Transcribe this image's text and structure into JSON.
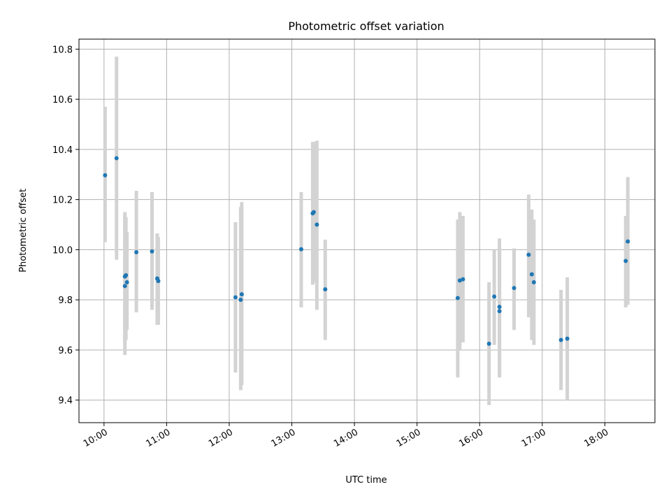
{
  "chart_data": {
    "type": "scatter",
    "title": "Photometric offset variation",
    "xlabel": "UTC time",
    "ylabel": "Photometric offset",
    "xlim": [
      "09:36",
      "18:48"
    ],
    "ylim": [
      9.31,
      10.84
    ],
    "x_ticks": [
      "10:00",
      "11:00",
      "12:00",
      "13:00",
      "14:00",
      "15:00",
      "16:00",
      "17:00",
      "18:00"
    ],
    "y_ticks": [
      "9.4",
      "9.6",
      "9.8",
      "10.0",
      "10.2",
      "10.4",
      "10.6",
      "10.8"
    ],
    "grid": true,
    "colors": {
      "marker": "#1f77b4",
      "errorbar": "#d3d3d3",
      "grid": "#b0b0b0"
    },
    "points": [
      {
        "x": "10:01",
        "y": 10.297,
        "lo": 10.03,
        "hi": 10.57
      },
      {
        "x": "10:12",
        "y": 10.365,
        "lo": 9.96,
        "hi": 10.77
      },
      {
        "x": "10:20",
        "y": 9.893,
        "lo": 9.63,
        "hi": 10.15
      },
      {
        "x": "10:20",
        "y": 9.855,
        "lo": 9.58,
        "hi": 10.12
      },
      {
        "x": "10:21",
        "y": 9.898,
        "lo": 9.64,
        "hi": 10.13
      },
      {
        "x": "10:22",
        "y": 9.87,
        "lo": 9.68,
        "hi": 10.07
      },
      {
        "x": "10:31",
        "y": 9.99,
        "lo": 9.75,
        "hi": 10.235
      },
      {
        "x": "10:46",
        "y": 9.993,
        "lo": 9.76,
        "hi": 10.23
      },
      {
        "x": "10:51",
        "y": 9.885,
        "lo": 9.7,
        "hi": 10.065
      },
      {
        "x": "10:52",
        "y": 9.875,
        "lo": 9.7,
        "hi": 10.05
      },
      {
        "x": "12:06",
        "y": 9.81,
        "lo": 9.51,
        "hi": 10.11
      },
      {
        "x": "12:11",
        "y": 9.8,
        "lo": 9.44,
        "hi": 10.17
      },
      {
        "x": "12:12",
        "y": 9.822,
        "lo": 9.46,
        "hi": 10.19
      },
      {
        "x": "13:09",
        "y": 10.002,
        "lo": 9.77,
        "hi": 10.23
      },
      {
        "x": "13:20",
        "y": 10.145,
        "lo": 9.86,
        "hi": 10.43
      },
      {
        "x": "13:21",
        "y": 10.15,
        "lo": 9.87,
        "hi": 10.43
      },
      {
        "x": "13:24",
        "y": 10.1,
        "lo": 9.76,
        "hi": 10.435
      },
      {
        "x": "13:32",
        "y": 9.842,
        "lo": 9.64,
        "hi": 10.04
      },
      {
        "x": "15:39",
        "y": 9.807,
        "lo": 9.49,
        "hi": 10.12
      },
      {
        "x": "15:41",
        "y": 9.877,
        "lo": 9.6,
        "hi": 10.15
      },
      {
        "x": "15:44",
        "y": 9.882,
        "lo": 9.63,
        "hi": 10.135
      },
      {
        "x": "16:09",
        "y": 9.625,
        "lo": 9.38,
        "hi": 9.87
      },
      {
        "x": "16:14",
        "y": 9.813,
        "lo": 9.62,
        "hi": 10.0
      },
      {
        "x": "16:19",
        "y": 9.772,
        "lo": 9.49,
        "hi": 10.045
      },
      {
        "x": "16:19",
        "y": 9.755,
        "lo": 9.5,
        "hi": 10.0
      },
      {
        "x": "16:33",
        "y": 9.847,
        "lo": 9.68,
        "hi": 10.005
      },
      {
        "x": "16:47",
        "y": 9.98,
        "lo": 9.73,
        "hi": 10.22
      },
      {
        "x": "16:50",
        "y": 9.902,
        "lo": 9.64,
        "hi": 10.16
      },
      {
        "x": "16:52",
        "y": 9.87,
        "lo": 9.62,
        "hi": 10.12
      },
      {
        "x": "17:18",
        "y": 9.64,
        "lo": 9.44,
        "hi": 9.84
      },
      {
        "x": "17:24",
        "y": 9.645,
        "lo": 9.4,
        "hi": 9.89
      },
      {
        "x": "18:20",
        "y": 9.955,
        "lo": 9.77,
        "hi": 10.135
      },
      {
        "x": "18:22",
        "y": 10.033,
        "lo": 9.78,
        "hi": 10.29
      }
    ]
  }
}
